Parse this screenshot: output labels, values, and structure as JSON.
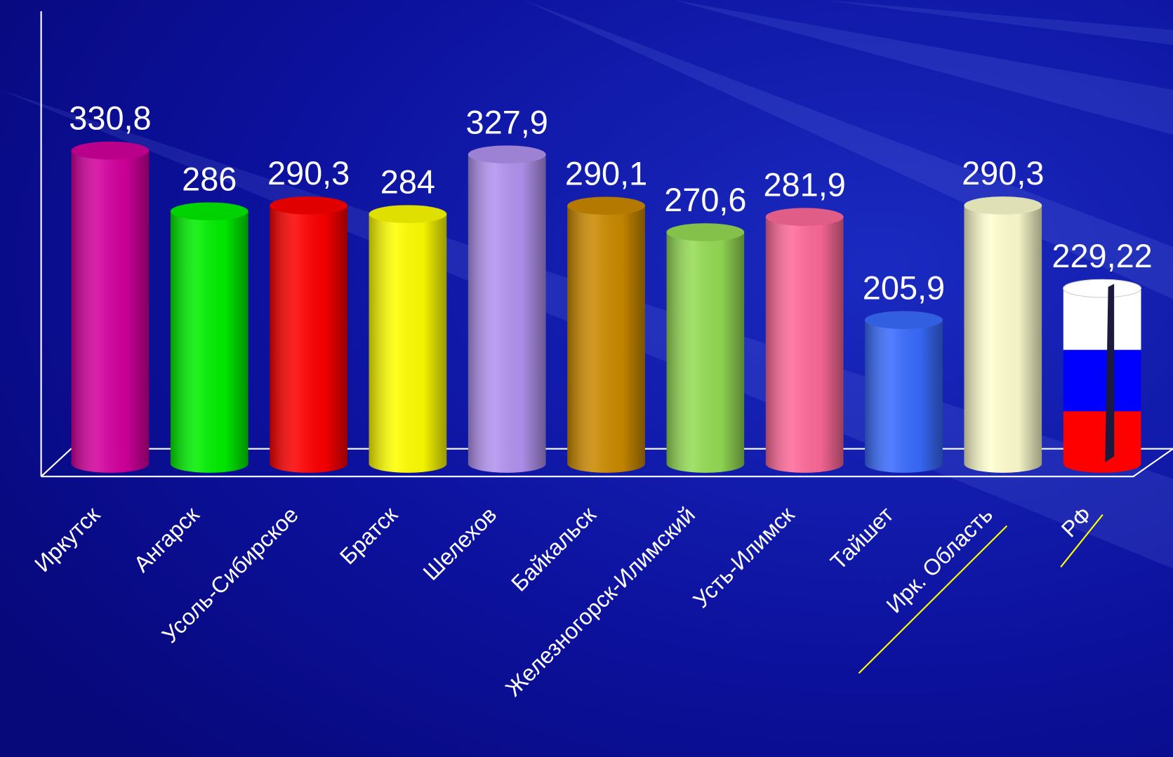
{
  "chart_data": {
    "type": "bar3d",
    "categories": [
      "Иркутск",
      "Ангарск",
      "Усоль-Сибирское",
      "Братск",
      "Шелехов",
      "Байкальск",
      "Железногорск-Илимский",
      "Усть-Илимск",
      "Тайшет",
      "Ирк. Область",
      "РФ"
    ],
    "values": [
      330.8,
      286,
      290.3,
      284,
      327.9,
      290.1,
      270.6,
      281.9,
      205.9,
      290.3,
      229.22
    ],
    "value_labels": [
      "330,8",
      "286",
      "290,3",
      "284",
      "327,9",
      "290,1",
      "270,6",
      "281,9",
      "205,9",
      "290,3",
      "229,22"
    ],
    "colors": [
      "#d4009e",
      "#00f000",
      "#ff0000",
      "#ffff00",
      "#b393f0",
      "#cc8a00",
      "#96dc55",
      "#ff6a9a",
      "#3a6cff",
      "#ffffd0",
      [
        "#ffffff",
        "#0000ff",
        "#ff0000"
      ]
    ],
    "ylim": [
      100,
      450
    ]
  }
}
